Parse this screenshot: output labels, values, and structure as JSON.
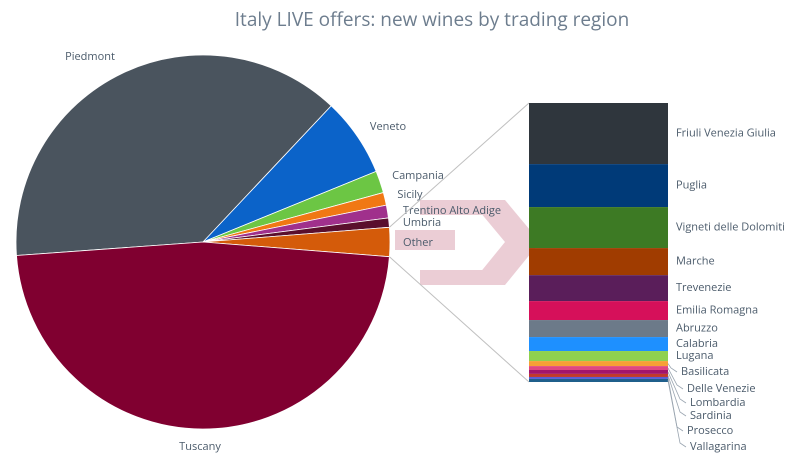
{
  "chart_data": {
    "type": "pie-of-bar",
    "title": "Italy LIVE offers: new wines by trading region",
    "pie": {
      "categories": [
        "Piedmont",
        "Veneto",
        "Campania",
        "Sicily",
        "Trentino Alto Adige",
        "Umbria",
        "Other",
        "Tuscany"
      ],
      "values": [
        38.1,
        6.8,
        1.9,
        1.1,
        1.1,
        0.8,
        2.5,
        47.5
      ],
      "colors": [
        "#4a545e",
        "#0b63c9",
        "#6cc644",
        "#f07814",
        "#a0308c",
        "#5a0f2d",
        "#d45b0a",
        "#800030"
      ]
    },
    "bar": {
      "categories": [
        "Friuli Venezia Giulia",
        "Puglia",
        "Vigneti delle Dolomiti",
        "Marche",
        "Trevenezie",
        "Emilia Romagna",
        "Abruzzo",
        "Calabria",
        "Lugana",
        "Basilicata",
        "Delle Venezie",
        "Lombardia",
        "Sardinia",
        "Prosecco",
        "Vallagarina"
      ],
      "values": [
        21.9,
        15.4,
        14.7,
        9.7,
        9.3,
        6.8,
        6.1,
        5.0,
        3.6,
        1.8,
        1.4,
        1.4,
        1.1,
        0.7,
        1.1
      ],
      "colors": [
        "#2f363d",
        "#003a78",
        "#3d7a24",
        "#a03c00",
        "#5a1e5a",
        "#d6105a",
        "#6c7a89",
        "#1e90ff",
        "#8fd14f",
        "#f7a035",
        "#e0487f",
        "#a2146b",
        "#c0392b",
        "#5b5bd6",
        "#1f5f8b"
      ]
    }
  }
}
